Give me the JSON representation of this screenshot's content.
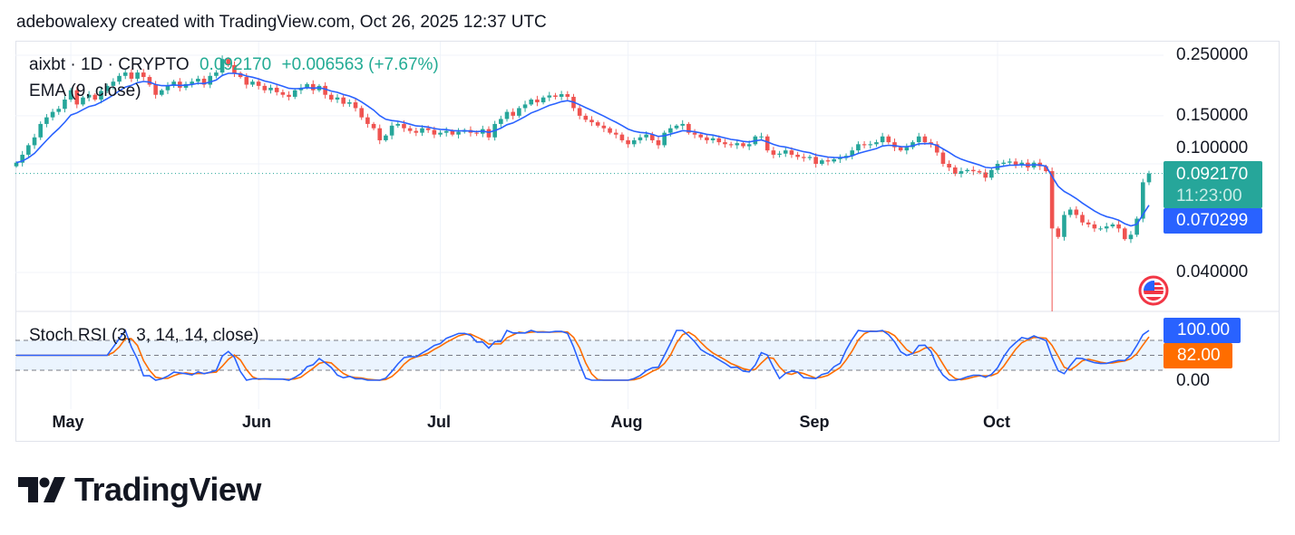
{
  "header": {
    "attribution": "adebowalexy created with TradingView.com, Oct 26, 2025 12:37 UTC"
  },
  "legend": {
    "symbol": "aixbt · 1D · CRYPTO",
    "last": "0.092170",
    "change": "+0.006563 (+7.67%)",
    "ema_label": "EMA (9, close)",
    "stoch_label": "Stoch RSI (3, 3, 14, 14, close)"
  },
  "price_axis": {
    "ticks": [
      "0.250000",
      "0.150000",
      "0.100000",
      "0.040000"
    ],
    "scale": "log"
  },
  "badges": {
    "last_price": "0.092170",
    "countdown": "11:23:00",
    "ema_value": "0.070299",
    "stoch_k": "100.00",
    "stoch_d": "82.00"
  },
  "stoch_axis": {
    "ticks": [
      "0.00"
    ]
  },
  "time_axis": {
    "labels": [
      "May",
      "Jun",
      "Jul",
      "Aug",
      "Sep",
      "Oct"
    ]
  },
  "brand": {
    "name": "TradingView"
  },
  "colors": {
    "up": "#26a69a",
    "down": "#ef5350",
    "ema": "#2962ff",
    "stoch_k": "#2962ff",
    "stoch_d": "#ff6d00",
    "band": "#e3effd"
  },
  "chart_data": {
    "type": "candlestick",
    "title": "aixbt · 1D · CRYPTO",
    "start_date": "2025-04-22",
    "end_date": "2025-10-26",
    "interval": "1D",
    "yscale": "log",
    "ylim": [
      0.028,
      0.27
    ],
    "grid": true,
    "closes": [
      0.101,
      0.108,
      0.117,
      0.125,
      0.14,
      0.148,
      0.155,
      0.159,
      0.172,
      0.186,
      0.165,
      0.175,
      0.179,
      0.172,
      0.185,
      0.193,
      0.2,
      0.21,
      0.216,
      0.205,
      0.216,
      0.208,
      0.195,
      0.179,
      0.186,
      0.193,
      0.2,
      0.19,
      0.196,
      0.2,
      0.205,
      0.195,
      0.21,
      0.216,
      0.242,
      0.23,
      0.215,
      0.208,
      0.195,
      0.2,
      0.193,
      0.186,
      0.19,
      0.183,
      0.179,
      0.176,
      0.186,
      0.19,
      0.196,
      0.186,
      0.193,
      0.179,
      0.172,
      0.175,
      0.166,
      0.168,
      0.16,
      0.148,
      0.14,
      0.135,
      0.122,
      0.127,
      0.138,
      0.14,
      0.135,
      0.132,
      0.13,
      0.135,
      0.133,
      0.128,
      0.13,
      0.132,
      0.128,
      0.131,
      0.133,
      0.13,
      0.129,
      0.134,
      0.125,
      0.14,
      0.146,
      0.155,
      0.15,
      0.16,
      0.165,
      0.172,
      0.168,
      0.175,
      0.178,
      0.176,
      0.18,
      0.176,
      0.16,
      0.15,
      0.145,
      0.142,
      0.138,
      0.135,
      0.13,
      0.128,
      0.122,
      0.118,
      0.122,
      0.125,
      0.128,
      0.122,
      0.117,
      0.13,
      0.135,
      0.138,
      0.14,
      0.13,
      0.128,
      0.125,
      0.122,
      0.124,
      0.12,
      0.118,
      0.117,
      0.119,
      0.116,
      0.118,
      0.126,
      0.126,
      0.112,
      0.108,
      0.109,
      0.112,
      0.108,
      0.106,
      0.105,
      0.106,
      0.1,
      0.103,
      0.102,
      0.104,
      0.105,
      0.107,
      0.112,
      0.118,
      0.117,
      0.118,
      0.12,
      0.126,
      0.12,
      0.115,
      0.112,
      0.115,
      0.12,
      0.126,
      0.12,
      0.118,
      0.11,
      0.1,
      0.097,
      0.092,
      0.094,
      0.095,
      0.094,
      0.093,
      0.089,
      0.095,
      0.1,
      0.101,
      0.102,
      0.099,
      0.101,
      0.097,
      0.101,
      0.098,
      0.094,
      0.058,
      0.054,
      0.065,
      0.068,
      0.065,
      0.061,
      0.06,
      0.058,
      0.058,
      0.059,
      0.06,
      0.058,
      0.053,
      0.055,
      0.063,
      0.0856,
      0.09217
    ],
    "spike_low": {
      "date": "2025-10-10",
      "low": 0.028
    },
    "indicators": [
      {
        "name": "EMA (9, close)",
        "last": 0.070299
      },
      {
        "name": "Stoch RSI (3, 3, 14, 14, close)",
        "k_last": 100.0,
        "d_last": 82.0,
        "bands": [
          80,
          50,
          20
        ],
        "ylim": [
          0,
          100
        ]
      }
    ]
  }
}
